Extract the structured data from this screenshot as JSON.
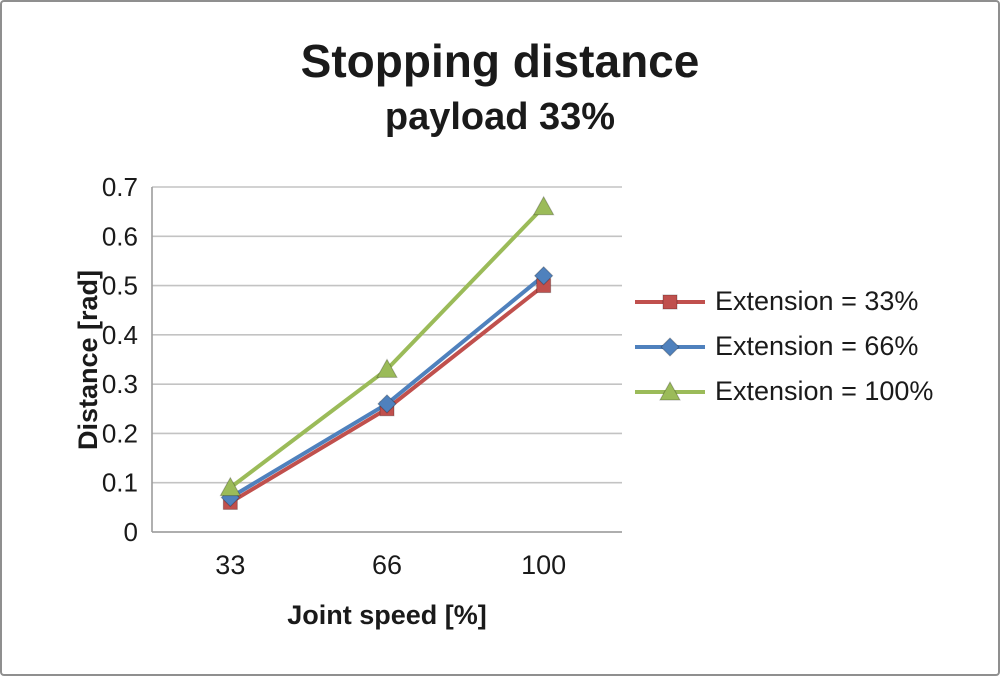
{
  "chart_data": {
    "type": "line",
    "title": "Stopping distance",
    "subtitle": "payload 33%",
    "xlabel": "Joint speed [%]",
    "ylabel": "Distance [rad]",
    "categories": [
      "33",
      "66",
      "100"
    ],
    "ylim": [
      0,
      0.7
    ],
    "ytick_labels": [
      "0",
      "0.1",
      "0.2",
      "0.3",
      "0.4",
      "0.5",
      "0.6",
      "0.7"
    ],
    "grid": true,
    "legend_position": "right",
    "series": [
      {
        "name": "Extension = 33%",
        "marker": "square",
        "color": "#C0504D",
        "values": [
          0.06,
          0.25,
          0.5
        ]
      },
      {
        "name": "Extension = 66%",
        "marker": "diamond",
        "color": "#4F81BD",
        "values": [
          0.07,
          0.26,
          0.52
        ]
      },
      {
        "name": "Extension = 100%",
        "marker": "triangle",
        "color": "#9BBB59",
        "values": [
          0.09,
          0.33,
          0.66
        ]
      }
    ],
    "colors": {
      "gridline": "#c3c3c3",
      "axis": "#9d9d9d",
      "text": "#1a1a1a"
    }
  }
}
